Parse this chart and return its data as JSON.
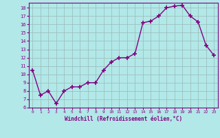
{
  "x": [
    0,
    1,
    2,
    3,
    4,
    5,
    6,
    7,
    8,
    9,
    10,
    11,
    12,
    13,
    14,
    15,
    16,
    17,
    18,
    19,
    20,
    21,
    22,
    23
  ],
  "y": [
    10.5,
    7.5,
    8.0,
    6.5,
    8.0,
    8.5,
    8.5,
    9.0,
    9.0,
    10.5,
    11.5,
    12.0,
    12.0,
    12.5,
    16.2,
    16.4,
    17.0,
    18.0,
    18.2,
    18.3,
    17.0,
    16.3,
    13.5,
    12.3
  ],
  "line_color": "#800080",
  "marker_color": "#800080",
  "bg_color": "#b2e8e8",
  "grid_color": "#9ab8b8",
  "axis_label_color": "#800080",
  "xlabel": "Windchill (Refroidissement éolien,°C)",
  "ylim": [
    6,
    18.6
  ],
  "xlim": [
    -0.5,
    23.5
  ],
  "yticks": [
    6,
    7,
    8,
    9,
    10,
    11,
    12,
    13,
    14,
    15,
    16,
    17,
    18
  ],
  "xticks": [
    0,
    1,
    2,
    3,
    4,
    5,
    6,
    7,
    8,
    9,
    10,
    11,
    12,
    13,
    14,
    15,
    16,
    17,
    18,
    19,
    20,
    21,
    22,
    23
  ]
}
